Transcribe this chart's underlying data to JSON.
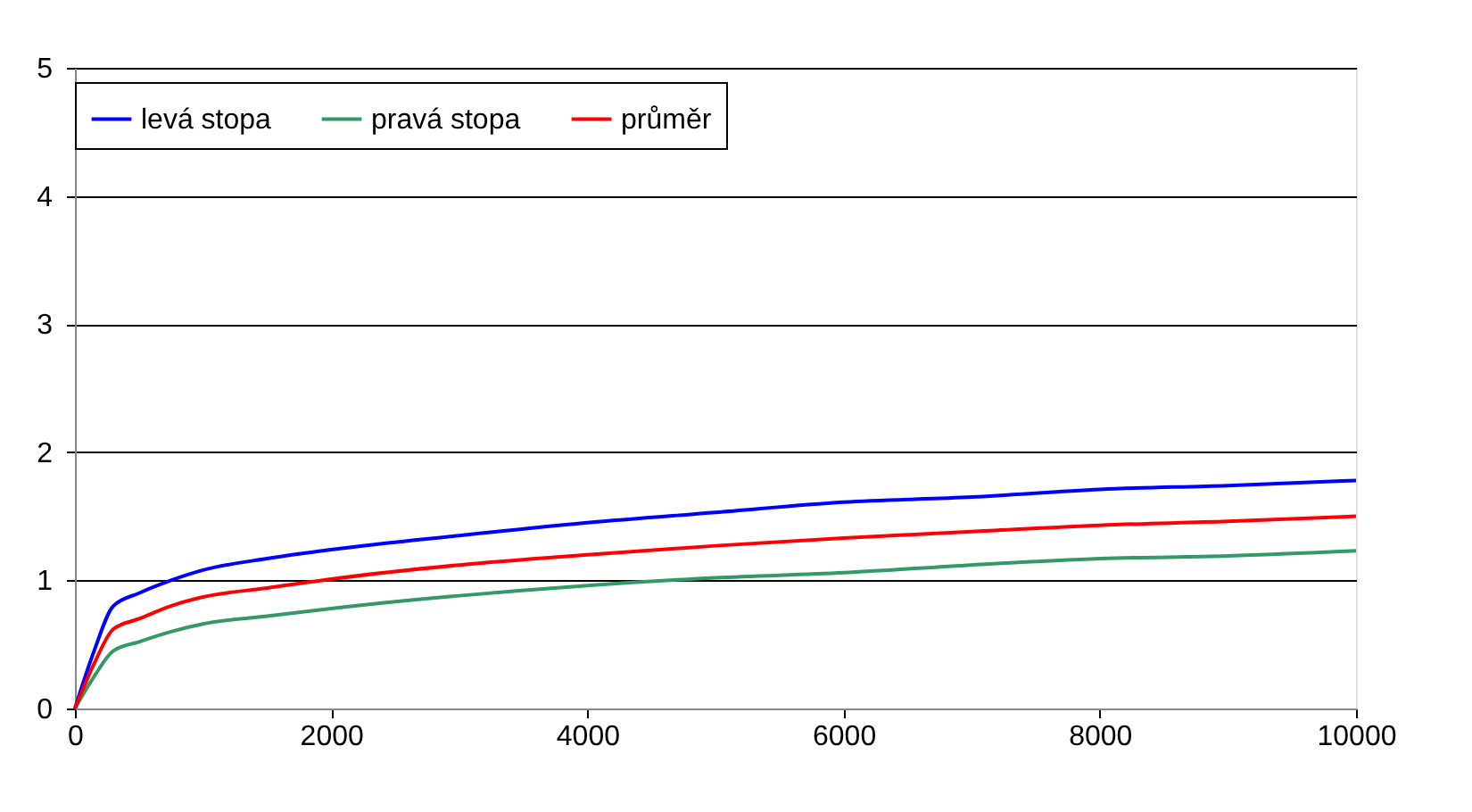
{
  "chart_data": {
    "type": "line",
    "x": [
      0,
      150,
      300,
      500,
      750,
      1000,
      1500,
      2000,
      3000,
      4000,
      5000,
      6000,
      7000,
      8000,
      9000,
      10000
    ],
    "series": [
      {
        "name": "levá stopa",
        "color": "#0000ff",
        "values": [
          0,
          0.45,
          0.8,
          0.9,
          1.0,
          1.08,
          1.17,
          1.24,
          1.35,
          1.45,
          1.53,
          1.61,
          1.65,
          1.71,
          1.74,
          1.78
        ]
      },
      {
        "name": "pravá stopa",
        "color": "#339966",
        "values": [
          0,
          0.25,
          0.45,
          0.52,
          0.6,
          0.66,
          0.72,
          0.78,
          0.88,
          0.96,
          1.02,
          1.06,
          1.12,
          1.17,
          1.19,
          1.23
        ]
      },
      {
        "name": "průměr",
        "color": "#ff0000",
        "values": [
          0,
          0.35,
          0.62,
          0.7,
          0.8,
          0.87,
          0.94,
          1.01,
          1.12,
          1.2,
          1.27,
          1.33,
          1.38,
          1.43,
          1.46,
          1.5
        ]
      }
    ],
    "xlim": [
      0,
      10000
    ],
    "xticks": [
      0,
      2000,
      4000,
      6000,
      8000,
      10000
    ],
    "ylim": [
      0,
      5
    ],
    "yticks": [
      0,
      1,
      2,
      3,
      4,
      5
    ],
    "grid": "y",
    "legend": "top",
    "marker": "none",
    "line_style": "solid"
  }
}
